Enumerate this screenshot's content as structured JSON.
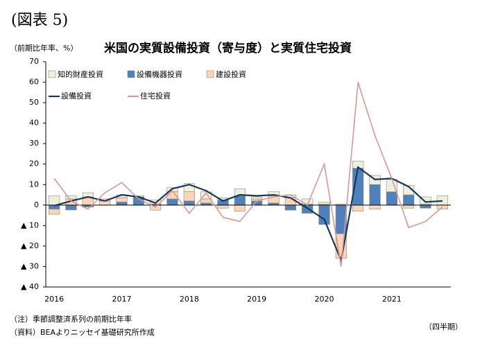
{
  "page_label": "(図表 5)",
  "chart_data": {
    "type": "bar",
    "title": "米国の実質設備投資（寄与度）と実質住宅投資",
    "y_label": "（前期比年率、%）",
    "x_label": "（四半期）",
    "notes": [
      "（注）季節調整済系列の前期比年率",
      "（資料）BEAよりニッセイ基礎研究所作成"
    ],
    "categories": [
      "2016",
      null,
      null,
      null,
      "2017",
      null,
      null,
      null,
      "2018",
      null,
      null,
      null,
      "2019",
      null,
      null,
      null,
      "2020",
      null,
      null,
      null,
      "2021",
      null,
      null,
      null
    ],
    "series": [
      {
        "name": "知的財産投資",
        "type": "bar",
        "color": "#eef0dc",
        "values": [
          4.5,
          1.5,
          2,
          1,
          1.5,
          0.5,
          2,
          2,
          4,
          3.5,
          1,
          3.5,
          1,
          2,
          1.5,
          2.5,
          1,
          0.5,
          3.5,
          4.5,
          6,
          4.5,
          3.5,
          4.5
        ]
      },
      {
        "name": "設備機器投資",
        "type": "bar",
        "color": "#4f81bd",
        "values": [
          -2,
          -2.4,
          -1,
          0,
          1.5,
          4,
          0.5,
          3,
          2,
          1,
          2.5,
          4.5,
          2,
          1,
          -2.5,
          -4,
          -9.5,
          -14,
          18,
          10,
          6.5,
          5,
          -1.5,
          0
        ]
      },
      {
        "name": "建設投資",
        "type": "bar",
        "color": "#fbd5b5",
        "values": [
          -2.5,
          3,
          4,
          2,
          2,
          0,
          -2.5,
          3.5,
          4.5,
          2,
          -1.5,
          -3,
          1,
          3.5,
          3.5,
          0.5,
          0.5,
          -12,
          -3,
          -2,
          0,
          -1.5,
          0.5,
          -2
        ]
      },
      {
        "name": "設備投資",
        "type": "line",
        "color": "#17375e",
        "values": [
          -0.3,
          2,
          4,
          2,
          5,
          4,
          1,
          8,
          10,
          7,
          2,
          5,
          4.5,
          5,
          3.5,
          -1.5,
          -7,
          -27,
          18.5,
          12.5,
          13,
          9,
          1.5,
          2
        ]
      },
      {
        "name": "住宅投資",
        "type": "line",
        "color": "#d99694",
        "values": [
          13,
          2,
          -2,
          6,
          11,
          3,
          -1,
          7,
          -4,
          6,
          -6,
          -8,
          2,
          4,
          5,
          0,
          20,
          -30,
          60,
          34,
          13,
          -11,
          -8,
          -1
        ]
      }
    ],
    "ylim": [
      -40,
      70
    ],
    "yticks": [
      {
        "value": -40,
        "label": "▲ 40"
      },
      {
        "value": -30,
        "label": "▲ 30"
      },
      {
        "value": -20,
        "label": "▲ 20"
      },
      {
        "value": -10,
        "label": "▲ 10"
      },
      0,
      10,
      20,
      30,
      40,
      50,
      60,
      70
    ]
  }
}
